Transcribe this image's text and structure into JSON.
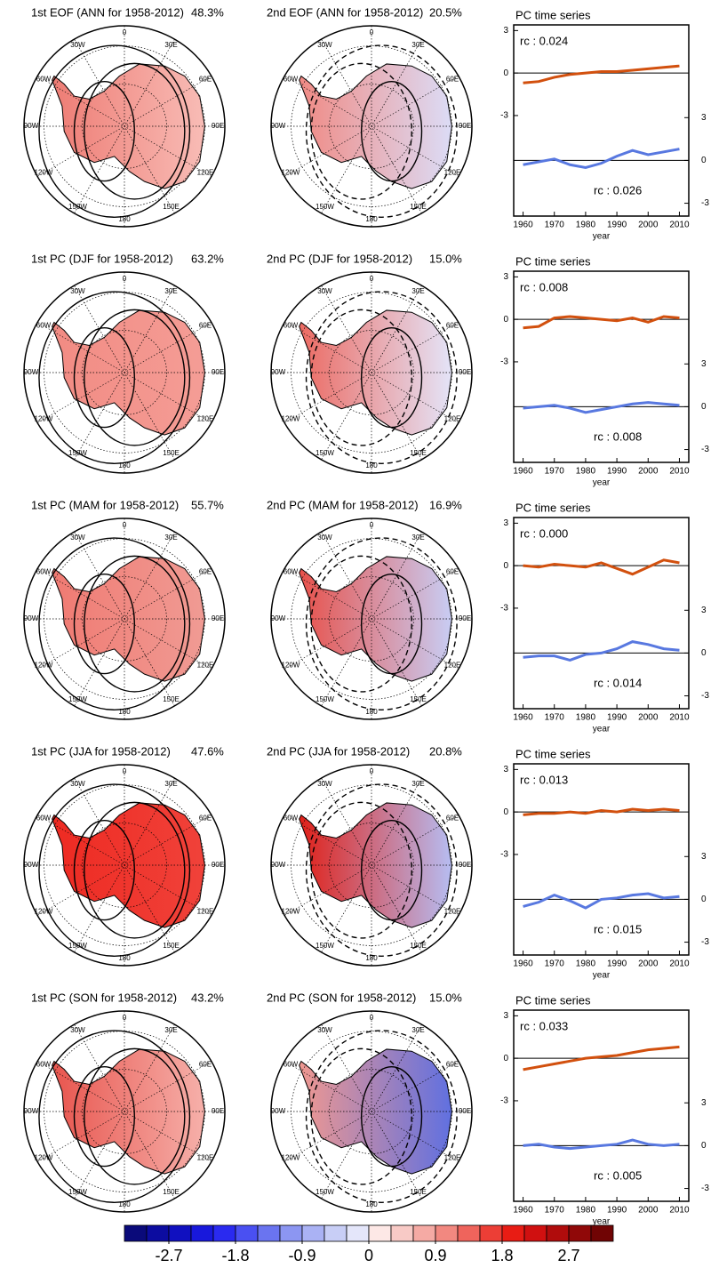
{
  "rows": [
    {
      "maps": [
        {
          "title": "1st EOF (ANN for 1958-2012)",
          "variance": "48.3%",
          "colors": [
            "#ee7c74",
            "#f8bcb6"
          ]
        },
        {
          "title": "2nd EOF (ANN for 1958-2012)",
          "variance": "20.5%",
          "colors": [
            "#f08a84",
            "#dcdcf6"
          ]
        }
      ],
      "series": {
        "title": "PC time series",
        "pc1": {
          "rc": "rc : 0.024",
          "color": "#c8400a",
          "values": [
            -0.7,
            -0.6,
            -0.3,
            -0.1,
            0,
            0.1,
            0.1,
            0.2,
            0.3,
            0.4,
            0.5
          ]
        },
        "pc2": {
          "rc": "rc : 0.026",
          "color": "#1f6f9a",
          "values": [
            -0.3,
            -0.1,
            0.1,
            -0.3,
            -0.5,
            -0.2,
            0.3,
            0.7,
            0.4,
            0.6,
            0.8
          ]
        }
      }
    },
    {
      "maps": [
        {
          "title": "1st PC (DJF for 1958-2012)",
          "variance": "63.2%",
          "colors": [
            "#f28b83",
            "#f49d96"
          ]
        },
        {
          "title": "2nd PC (DJF for 1958-2012)",
          "variance": "15.0%",
          "colors": [
            "#ec6a62",
            "#e4e4f8"
          ]
        }
      ],
      "series": {
        "title": "PC time series",
        "pc1": {
          "rc": "rc : 0.008",
          "color": "#c8400a",
          "values": [
            -0.6,
            -0.5,
            0.1,
            0.2,
            0.1,
            0,
            -0.1,
            0.1,
            -0.2,
            0.2,
            0.1
          ]
        },
        "pc2": {
          "rc": "rc : 0.008",
          "color": "#1f6f9a",
          "values": [
            -0.1,
            0,
            0.1,
            -0.1,
            -0.4,
            -0.2,
            0,
            0.2,
            0.3,
            0.2,
            0.1
          ]
        }
      }
    },
    {
      "maps": [
        {
          "title": "1st PC (MAM for 1958-2012)",
          "variance": "55.7%",
          "colors": [
            "#f07a72",
            "#f09b94"
          ]
        },
        {
          "title": "2nd PC (MAM for 1958-2012)",
          "variance": "16.9%",
          "colors": [
            "#e8514a",
            "#c8cdf4"
          ]
        }
      ],
      "series": {
        "title": "PC time series",
        "pc1": {
          "rc": "rc : 0.000",
          "color": "#c8400a",
          "values": [
            0,
            -0.1,
            0.1,
            0,
            -0.1,
            0.2,
            -0.2,
            -0.6,
            -0.1,
            0.4,
            0.2
          ]
        },
        "pc2": {
          "rc": "rc : 0.014",
          "color": "#1f6f9a",
          "values": [
            -0.3,
            -0.2,
            -0.2,
            -0.5,
            -0.1,
            0,
            0.3,
            0.8,
            0.6,
            0.3,
            0.2
          ]
        }
      }
    },
    {
      "maps": [
        {
          "title": "1st PC (JJA for 1958-2012)",
          "variance": "47.6%",
          "colors": [
            "#ee2a22",
            "#f0423a"
          ]
        },
        {
          "title": "2nd PC (JJA for 1958-2012)",
          "variance": "20.8%",
          "colors": [
            "#e02018",
            "#b6bdf2"
          ]
        }
      ],
      "series": {
        "title": "PC time series",
        "pc1": {
          "rc": "rc : 0.013",
          "color": "#c8400a",
          "values": [
            -0.2,
            -0.1,
            -0.1,
            0,
            -0.1,
            0.1,
            0,
            0.2,
            0.1,
            0.2,
            0.1
          ]
        },
        "pc2": {
          "rc": "rc : 0.015",
          "color": "#1f6f9a",
          "values": [
            -0.5,
            -0.2,
            0.3,
            -0.1,
            -0.6,
            0,
            0.1,
            0.3,
            0.4,
            0.1,
            0.2
          ]
        }
      }
    },
    {
      "maps": [
        {
          "title": "1st PC (SON for 1958-2012)",
          "variance": "43.2%",
          "colors": [
            "#e8554e",
            "#f6b0aa"
          ]
        },
        {
          "title": "2nd PC (SON for 1958-2012)",
          "variance": "15.0%",
          "colors": [
            "#f09890",
            "#6070e0"
          ]
        }
      ],
      "series": {
        "title": "PC time series",
        "pc1": {
          "rc": "rc : 0.033",
          "color": "#c8400a",
          "values": [
            -0.8,
            -0.6,
            -0.4,
            -0.2,
            0,
            0.1,
            0.2,
            0.4,
            0.6,
            0.7,
            0.8
          ]
        },
        "pc2": {
          "rc": "rc : 0.005",
          "color": "#1f6f9a",
          "values": [
            0,
            0.1,
            -0.1,
            -0.2,
            -0.1,
            0,
            0.1,
            0.4,
            0.1,
            0,
            0.1
          ]
        }
      }
    }
  ],
  "lon_labels": [
    "0",
    "30E",
    "60E",
    "90E",
    "120E",
    "150E",
    "180",
    "150W",
    "120W",
    "90W",
    "60W",
    "30W"
  ],
  "pc_axes": {
    "years": [
      1960,
      1965,
      1970,
      1975,
      1980,
      1985,
      1990,
      1995,
      2000,
      2005,
      2010
    ],
    "xlim": [
      1957,
      2013
    ],
    "xticks": [
      1960,
      1970,
      1980,
      1990,
      2000,
      2010
    ],
    "xlabel": "year",
    "ylim": [
      -10.1,
      3.4
    ],
    "yticks": [
      3,
      0,
      -3
    ],
    "y2lim": [
      -3.9,
      9.5
    ],
    "y2ticks": [
      3,
      0,
      -3
    ],
    "pc1_smooth_color": "#d2500e",
    "pc2_smooth_color": "#5878e0"
  },
  "colorbar": {
    "range": [
      -3.3,
      3.3
    ],
    "colors": [
      "#0a0a7a",
      "#0c0ca0",
      "#1010c0",
      "#1818dc",
      "#2a2af0",
      "#4a50f2",
      "#6a74f0",
      "#8c96f2",
      "#aab2f4",
      "#c8cef6",
      "#e4e6fa",
      "#fde8e6",
      "#f8cac6",
      "#f5aaa4",
      "#f28880",
      "#ef645c",
      "#ec3e36",
      "#e81c14",
      "#d01010",
      "#b00c0c",
      "#900808",
      "#700404"
    ],
    "ticks": [
      -2.7,
      -1.8,
      -0.9,
      0,
      0.9,
      1.8,
      2.7
    ]
  }
}
